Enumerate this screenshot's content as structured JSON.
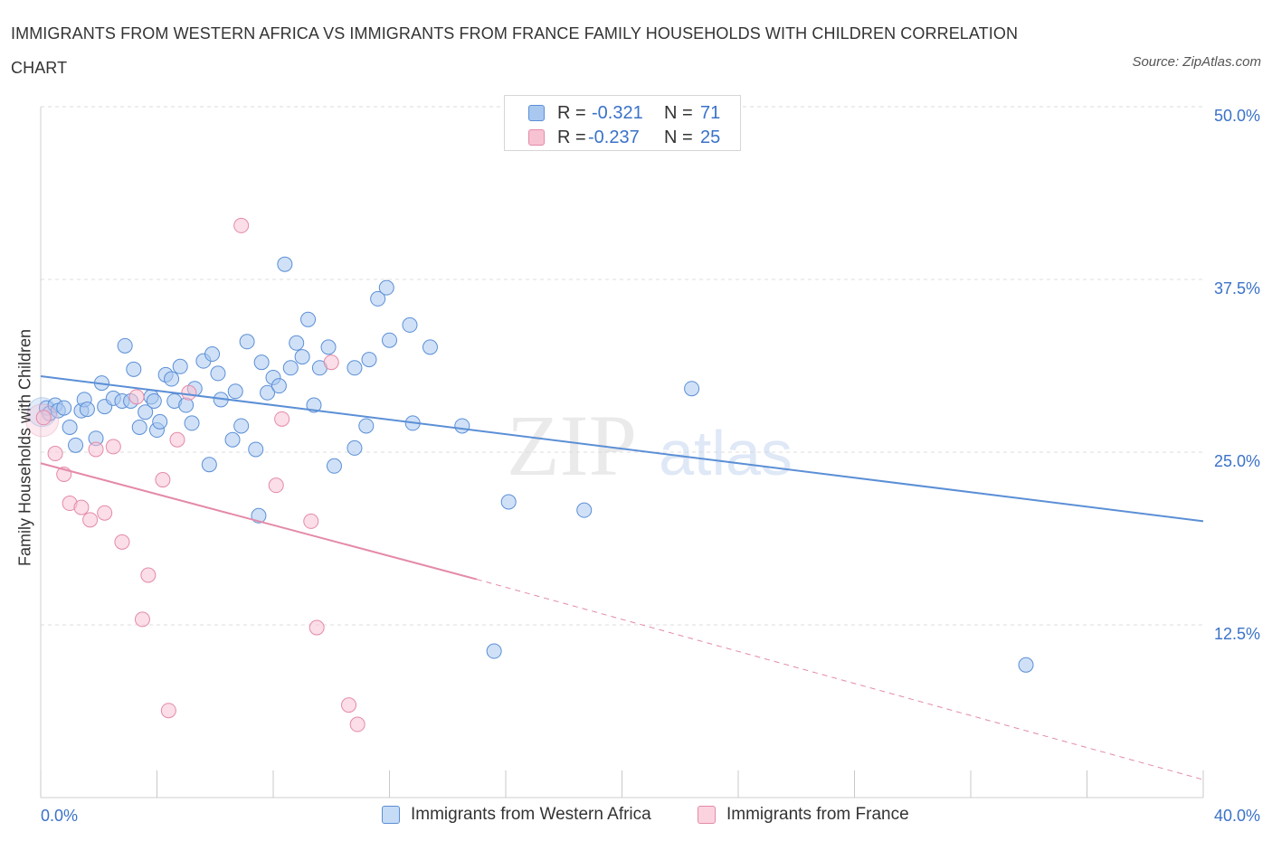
{
  "title": "IMMIGRANTS FROM WESTERN AFRICA VS IMMIGRANTS FROM FRANCE FAMILY HOUSEHOLDS WITH CHILDREN CORRELATION CHART",
  "source": "Source: ZipAtlas.com",
  "watermark": {
    "zip": "ZIP",
    "atlas": "atlas"
  },
  "legend": {
    "rows": [
      {
        "r_label": "R =",
        "r_value": "-0.321",
        "n_label": "N =",
        "n_value": "71",
        "color": "#a9c8f0",
        "border": "#5b8fd6"
      },
      {
        "r_label": "R =",
        "r_value": "-0.237",
        "n_label": "N =",
        "n_value": "25",
        "color": "#f7c3d3",
        "border": "#e48aa8"
      }
    ]
  },
  "bottom_legend": [
    {
      "label": "Immigrants from Western Africa",
      "color": "#c5dbf6",
      "border": "#5b8fd6"
    },
    {
      "label": "Immigrants from France",
      "color": "#fbd3df",
      "border": "#e48aa8"
    }
  ],
  "chart_data": {
    "type": "scatter",
    "title": "IMMIGRANTS FROM WESTERN AFRICA VS IMMIGRANTS FROM FRANCE FAMILY HOUSEHOLDS WITH CHILDREN CORRELATION CHART",
    "xlabel": "",
    "ylabel": "Family Households with Children",
    "xlim": [
      0,
      40
    ],
    "ylim": [
      0,
      50
    ],
    "x_tick_labels": [
      "0.0%",
      "40.0%"
    ],
    "y_ticks": [
      12.5,
      25.0,
      37.5,
      50.0
    ],
    "y_tick_labels": [
      "12.5%",
      "25.0%",
      "37.5%",
      "50.0%"
    ],
    "grid": "horizontal dashed",
    "legend_placement": "top-center",
    "series": [
      {
        "name": "Immigrants from Western Africa",
        "color": "#5b8fd6",
        "fill": "#a9c8f0",
        "trend": {
          "x": [
            0,
            40
          ],
          "y": [
            30.5,
            20.0
          ],
          "style": "solid"
        },
        "points": [
          [
            0.2,
            28.2
          ],
          [
            0.3,
            27.8
          ],
          [
            0.5,
            28.4
          ],
          [
            0.6,
            28.0
          ],
          [
            0.8,
            28.2
          ],
          [
            1.0,
            26.8
          ],
          [
            1.2,
            25.5
          ],
          [
            1.4,
            28.0
          ],
          [
            1.5,
            28.8
          ],
          [
            1.6,
            28.1
          ],
          [
            1.9,
            26.0
          ],
          [
            2.1,
            30.0
          ],
          [
            2.2,
            28.3
          ],
          [
            2.5,
            28.9
          ],
          [
            2.8,
            28.7
          ],
          [
            2.9,
            32.7
          ],
          [
            3.1,
            28.7
          ],
          [
            3.2,
            31.0
          ],
          [
            3.4,
            26.8
          ],
          [
            3.6,
            27.9
          ],
          [
            3.8,
            29.0
          ],
          [
            3.9,
            28.7
          ],
          [
            4.0,
            26.6
          ],
          [
            4.1,
            27.2
          ],
          [
            4.3,
            30.6
          ],
          [
            4.5,
            30.3
          ],
          [
            4.6,
            28.7
          ],
          [
            4.8,
            31.2
          ],
          [
            5.0,
            28.4
          ],
          [
            5.2,
            27.1
          ],
          [
            5.3,
            29.6
          ],
          [
            5.6,
            31.6
          ],
          [
            5.8,
            24.1
          ],
          [
            5.9,
            32.1
          ],
          [
            6.1,
            30.7
          ],
          [
            6.2,
            28.8
          ],
          [
            6.6,
            25.9
          ],
          [
            6.7,
            29.4
          ],
          [
            6.9,
            26.9
          ],
          [
            7.1,
            33.0
          ],
          [
            7.4,
            25.2
          ],
          [
            7.5,
            20.4
          ],
          [
            7.6,
            31.5
          ],
          [
            7.8,
            29.3
          ],
          [
            8.0,
            30.4
          ],
          [
            8.2,
            29.8
          ],
          [
            8.4,
            38.6
          ],
          [
            8.6,
            31.1
          ],
          [
            8.8,
            32.9
          ],
          [
            9.0,
            31.9
          ],
          [
            9.2,
            34.6
          ],
          [
            9.4,
            28.4
          ],
          [
            9.6,
            31.1
          ],
          [
            9.9,
            32.6
          ],
          [
            10.1,
            24.0
          ],
          [
            10.8,
            31.1
          ],
          [
            10.8,
            25.3
          ],
          [
            11.2,
            26.9
          ],
          [
            11.3,
            31.7
          ],
          [
            11.6,
            36.1
          ],
          [
            11.9,
            36.9
          ],
          [
            12.0,
            33.1
          ],
          [
            12.7,
            34.2
          ],
          [
            12.8,
            27.1
          ],
          [
            13.4,
            32.6
          ],
          [
            14.5,
            26.9
          ],
          [
            15.6,
            10.6
          ],
          [
            16.1,
            21.4
          ],
          [
            18.7,
            20.8
          ],
          [
            22.4,
            29.6
          ],
          [
            33.9,
            9.6
          ]
        ]
      },
      {
        "name": "Immigrants from France",
        "color": "#e48aa8",
        "fill": "#f7c3d3",
        "trend": {
          "x": [
            0,
            15.0
          ],
          "y": [
            24.2,
            15.8
          ],
          "style": "solid",
          "extended": {
            "x": [
              15.0,
              40
            ],
            "y": [
              15.8,
              1.3
            ],
            "style": "dashed"
          }
        },
        "points": [
          [
            0.1,
            27.5
          ],
          [
            0.5,
            24.9
          ],
          [
            0.8,
            23.4
          ],
          [
            1.0,
            21.3
          ],
          [
            1.4,
            21.0
          ],
          [
            1.7,
            20.1
          ],
          [
            1.9,
            25.2
          ],
          [
            2.2,
            20.6
          ],
          [
            2.5,
            25.4
          ],
          [
            2.8,
            18.5
          ],
          [
            3.3,
            29.0
          ],
          [
            3.5,
            12.9
          ],
          [
            3.7,
            16.1
          ],
          [
            4.2,
            23.0
          ],
          [
            4.4,
            6.3
          ],
          [
            4.7,
            25.9
          ],
          [
            5.1,
            29.3
          ],
          [
            6.9,
            41.4
          ],
          [
            8.1,
            22.6
          ],
          [
            8.3,
            27.4
          ],
          [
            9.3,
            20.0
          ],
          [
            9.5,
            12.3
          ],
          [
            10.0,
            31.5
          ],
          [
            10.6,
            6.7
          ],
          [
            10.9,
            5.3
          ]
        ]
      }
    ]
  }
}
